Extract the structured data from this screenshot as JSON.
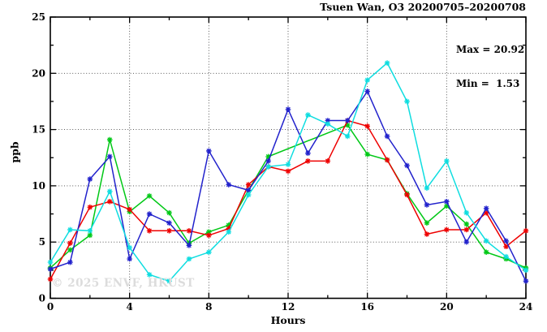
{
  "header": {
    "title": "Tsuen Wan, O3 20200705–20200708"
  },
  "legend": {
    "max_label": "Max = 20.92",
    "min_label": "Min =  1.53"
  },
  "axes": {
    "y_label": "ppb",
    "x_label": "Hours"
  },
  "watermark": "© 2025 ENVF, HKUST",
  "chart_data": {
    "type": "line",
    "title": "Tsuen Wan, O3 20200705–20200708",
    "xlabel": "Hours",
    "ylabel": "ppb",
    "xlim": [
      0,
      24
    ],
    "ylim": [
      0,
      25
    ],
    "xticks": [
      0,
      4,
      8,
      12,
      16,
      20,
      24
    ],
    "xticks_minor": [
      2,
      6,
      10,
      14,
      18,
      22
    ],
    "yticks": [
      0,
      5,
      10,
      15,
      20,
      25
    ],
    "yticks_minor": [
      2.5,
      7.5,
      12.5,
      17.5,
      22.5
    ],
    "grid": true,
    "grid_x": [
      4,
      8,
      12,
      16,
      20
    ],
    "grid_y": [
      5,
      10,
      15,
      20
    ],
    "legend_position": "top-right",
    "annotations": {
      "max": 20.92,
      "min": 1.53
    },
    "marker": "asterisk",
    "x": [
      0,
      1,
      2,
      3,
      4,
      5,
      6,
      7,
      8,
      9,
      10,
      11,
      12,
      13,
      14,
      15,
      16,
      17,
      18,
      19,
      20,
      21,
      22,
      23,
      24
    ],
    "series": [
      {
        "name": "green-line",
        "color": "#00c816",
        "values": [
          2.7,
          4.3,
          5.6,
          14.1,
          7.7,
          9.1,
          7.6,
          4.9,
          5.9,
          6.5,
          9.6,
          12.6,
          null,
          null,
          null,
          15.4,
          12.8,
          12.3,
          9.3,
          6.7,
          8.2,
          6.6,
          4.1,
          3.5,
          2.7
        ]
      },
      {
        "name": "red-line",
        "color": "#ee0000",
        "values": [
          1.7,
          4.9,
          8.1,
          8.6,
          7.9,
          6.0,
          6.0,
          6.0,
          5.6,
          6.2,
          10.1,
          11.7,
          11.3,
          12.2,
          12.2,
          15.8,
          15.3,
          12.3,
          9.2,
          5.7,
          6.1,
          6.1,
          7.6,
          4.6,
          6.0
        ]
      },
      {
        "name": "blue-line",
        "color": "#2222cc",
        "values": [
          2.6,
          3.2,
          10.6,
          12.6,
          3.5,
          7.5,
          6.7,
          4.7,
          13.1,
          10.1,
          9.6,
          12.2,
          16.8,
          12.9,
          15.8,
          15.8,
          18.4,
          14.4,
          11.8,
          8.3,
          8.6,
          5.0,
          8.0,
          5.1,
          1.53
        ]
      },
      {
        "name": "cyan-line",
        "color": "#0fdde0",
        "values": [
          3.2,
          6.1,
          6.0,
          9.5,
          4.5,
          2.1,
          1.53,
          3.5,
          4.1,
          5.9,
          9.2,
          11.7,
          11.9,
          16.3,
          15.5,
          14.4,
          19.4,
          20.92,
          17.5,
          9.8,
          12.2,
          7.6,
          5.1,
          3.7,
          2.5
        ]
      }
    ]
  }
}
